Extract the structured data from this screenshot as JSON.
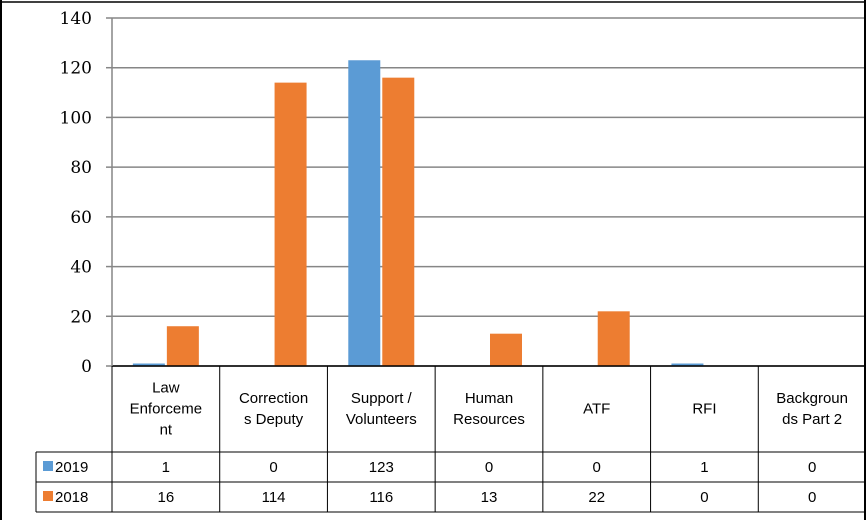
{
  "chart_data": {
    "type": "bar",
    "title": "",
    "xlabel": "",
    "ylabel": "",
    "ylim": [
      0,
      140
    ],
    "yticks": [
      "0",
      "20",
      "40",
      "60",
      "80",
      "100",
      "120",
      "140"
    ],
    "grid": true,
    "legend": "data-table-rows",
    "categories": [
      [
        "Law",
        "Enforceme",
        "nt"
      ],
      [
        "Correction",
        "s Deputy"
      ],
      [
        "Support /",
        "Volunteers"
      ],
      [
        "Human",
        "Resources"
      ],
      [
        "ATF"
      ],
      [
        "RFI"
      ],
      [
        "Backgroun",
        "ds Part 2"
      ]
    ],
    "series": [
      {
        "name": "2019",
        "color": "#5B9BD5",
        "values": [
          1,
          0,
          123,
          0,
          0,
          1,
          0
        ]
      },
      {
        "name": "2018",
        "color": "#ED7D31",
        "values": [
          16,
          114,
          116,
          13,
          22,
          0,
          0
        ]
      }
    ]
  }
}
